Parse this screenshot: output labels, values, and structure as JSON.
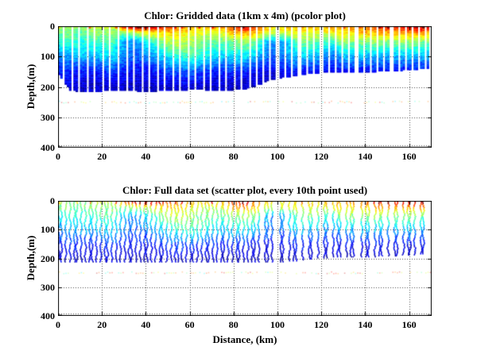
{
  "figure": {
    "background": "#ffffff",
    "text_color": "#000000",
    "grid_style": "dotted",
    "colormap": "jet",
    "colormap_anchors": {
      "low": "#00008f",
      "mid": "#00ffff",
      "high": "#7f0000"
    }
  },
  "chart_data": [
    {
      "type": "heatmap",
      "title": "Chlor: Gridded data (1km x 4m) (pcolor plot)",
      "xlabel": "",
      "ylabel": "Depth,(m)",
      "xlim": [
        0,
        170.3
      ],
      "ylim": [
        400,
        0
      ],
      "xticks": [
        0,
        20,
        40,
        60,
        80,
        100,
        120,
        140,
        160
      ],
      "yticks": [
        0,
        100,
        200,
        300,
        400
      ],
      "grid": "on",
      "legend": "none",
      "cell_size_km_m": [
        1,
        4
      ]
    },
    {
      "type": "scatter",
      "title": "Chlor: Full data set (scatter plot, every 10th point used)",
      "xlabel": "Distance, (km)",
      "ylabel": "Depth,(m)",
      "xlim": [
        0,
        170.3
      ],
      "ylim": [
        400,
        0
      ],
      "xticks": [
        0,
        20,
        40,
        60,
        80,
        100,
        120,
        140,
        160
      ],
      "yticks": [
        0,
        100,
        200,
        300,
        400
      ],
      "grid": "on",
      "legend": "none",
      "subsample": "every 10th point"
    }
  ],
  "field": {
    "description": "normalized chlorophyll values 0-1 on jet colormap, read from pixels",
    "x_km": [
      0,
      5,
      10,
      15,
      20,
      25,
      30,
      35,
      40,
      45,
      50,
      55,
      60,
      65,
      70,
      75,
      80,
      85,
      90,
      95,
      100,
      105,
      110,
      115,
      120,
      125,
      130,
      135,
      140,
      145,
      150,
      155,
      160,
      165,
      170
    ],
    "depth_nodes_m": [
      0,
      20,
      50,
      100,
      150,
      200
    ],
    "values": [
      [
        0.5,
        0.48,
        0.4,
        0.25,
        0.14,
        0.08
      ],
      [
        0.52,
        0.5,
        0.42,
        0.28,
        0.16,
        0.08
      ],
      [
        0.5,
        0.46,
        0.4,
        0.3,
        0.14,
        0.07
      ],
      [
        0.55,
        0.5,
        0.42,
        0.3,
        0.12,
        0.07
      ],
      [
        0.58,
        0.52,
        0.45,
        0.32,
        0.15,
        0.08
      ],
      [
        0.56,
        0.5,
        0.45,
        0.34,
        0.18,
        0.08
      ],
      [
        0.85,
        0.5,
        0.3,
        0.25,
        0.14,
        0.07
      ],
      [
        0.95,
        0.55,
        0.25,
        0.2,
        0.12,
        0.06
      ],
      [
        0.97,
        0.6,
        0.35,
        0.25,
        0.12,
        0.06
      ],
      [
        0.9,
        0.65,
        0.45,
        0.3,
        0.14,
        0.07
      ],
      [
        0.8,
        0.68,
        0.55,
        0.35,
        0.18,
        0.08
      ],
      [
        0.75,
        0.65,
        0.58,
        0.4,
        0.2,
        0.08
      ],
      [
        0.72,
        0.62,
        0.55,
        0.44,
        0.2,
        0.08
      ],
      [
        0.68,
        0.6,
        0.5,
        0.4,
        0.18,
        0.07
      ],
      [
        0.68,
        0.58,
        0.48,
        0.35,
        0.15,
        0.07
      ],
      [
        0.7,
        0.6,
        0.45,
        0.32,
        0.15,
        0.07
      ],
      [
        0.85,
        0.7,
        0.5,
        0.35,
        0.15,
        0.06
      ],
      [
        0.9,
        0.72,
        0.52,
        0.35,
        0.14,
        0.06
      ],
      [
        0.8,
        0.68,
        0.5,
        0.3,
        0.12,
        0.06
      ],
      [
        0.68,
        0.6,
        0.3,
        0.25,
        0.1,
        0.06
      ],
      [
        0.65,
        0.55,
        0.25,
        0.2,
        0.1,
        0.06
      ],
      [
        0.7,
        0.6,
        0.35,
        0.28,
        0.12,
        0.06
      ],
      [
        0.7,
        0.62,
        0.5,
        0.34,
        0.14,
        0.06
      ],
      [
        0.68,
        0.6,
        0.48,
        0.3,
        0.12,
        0.06
      ],
      [
        0.72,
        0.6,
        0.45,
        0.28,
        0.12,
        0.06
      ],
      [
        0.7,
        0.62,
        0.4,
        0.22,
        0.1,
        0.06
      ],
      [
        0.72,
        0.65,
        0.55,
        0.3,
        0.12,
        0.06
      ],
      [
        0.75,
        0.65,
        0.5,
        0.3,
        0.12,
        0.06
      ],
      [
        0.78,
        0.68,
        0.5,
        0.3,
        0.12,
        0.06
      ],
      [
        0.8,
        0.7,
        0.52,
        0.3,
        0.12,
        0.06
      ],
      [
        0.88,
        0.7,
        0.5,
        0.28,
        0.12,
        0.06
      ],
      [
        0.85,
        0.72,
        0.5,
        0.3,
        0.12,
        0.06
      ],
      [
        0.9,
        0.72,
        0.52,
        0.3,
        0.12,
        0.06
      ],
      [
        0.92,
        0.74,
        0.5,
        0.28,
        0.12,
        0.06
      ],
      [
        0.88,
        0.7,
        0.48,
        0.28,
        0.12,
        0.06
      ]
    ],
    "bottom_depth_m": [
      160,
      210,
      215,
      215,
      212,
      210,
      210,
      212,
      215,
      212,
      210,
      210,
      208,
      208,
      210,
      210,
      208,
      205,
      195,
      180,
      170,
      165,
      160,
      155,
      152,
      150,
      150,
      150,
      150,
      148,
      145,
      145,
      142,
      140,
      140
    ],
    "missing_columns_top_km": [
      2,
      6,
      9,
      13,
      16,
      20,
      23,
      27,
      31,
      34,
      38,
      41,
      45,
      48,
      52,
      55,
      59,
      62,
      66,
      69,
      73,
      76,
      80,
      83,
      87,
      90,
      93,
      96,
      99,
      100,
      103,
      106,
      109,
      110,
      113,
      116,
      119,
      120,
      123,
      126,
      129,
      132,
      135,
      136,
      139,
      142,
      145,
      148,
      151,
      152,
      155,
      158,
      161,
      164,
      167,
      169
    ],
    "missing_columns_extra_bottom_km": [
      4,
      11,
      18,
      25,
      29,
      36,
      43,
      50,
      57,
      64,
      71,
      78,
      85,
      92,
      98,
      104,
      112,
      117,
      124,
      130,
      137,
      143,
      149,
      156,
      163,
      168
    ],
    "artifact_row_depth_m": 245
  }
}
